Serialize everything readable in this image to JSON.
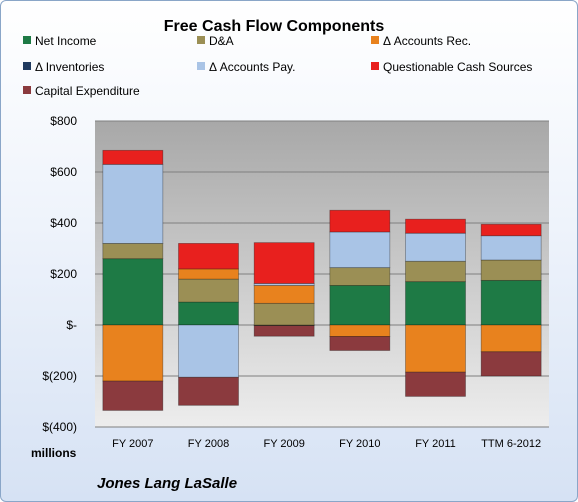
{
  "chart_data": {
    "type": "bar",
    "stacked": true,
    "title": "Free Cash Flow Components",
    "categories": [
      "FY 2007",
      "FY 2008",
      "FY 2009",
      "FY 2010",
      "FY 2011",
      "TTM 6-2012"
    ],
    "series": [
      {
        "name": "Net Income",
        "color": "#1e7a45",
        "values": [
          260,
          90,
          -2,
          155,
          170,
          175
        ]
      },
      {
        "name": "D&A",
        "color": "#9b8f55",
        "values": [
          60,
          90,
          85,
          70,
          80,
          80
        ]
      },
      {
        "name": "Δ Accounts Rec.",
        "color": "#e8821e",
        "values": [
          -220,
          40,
          70,
          -45,
          -185,
          -105
        ]
      },
      {
        "name": "Δ Inventories",
        "color": "#1f3a5f",
        "values": [
          0,
          0,
          0,
          0,
          0,
          0
        ]
      },
      {
        "name": "Δ Accounts Pay.",
        "color": "#a9c4e6",
        "values": [
          310,
          -205,
          8,
          140,
          110,
          95
        ]
      },
      {
        "name": "Questionable Cash Sources",
        "color": "#e8201e",
        "values": [
          55,
          100,
          160,
          85,
          55,
          45
        ]
      },
      {
        "name": "Capital Expenditure",
        "color": "#8b3a3e",
        "values": [
          -115,
          -110,
          -42,
          -55,
          -95,
          -95
        ]
      }
    ],
    "y_ticks": [
      800,
      600,
      400,
      200,
      0,
      -200,
      -400
    ],
    "y_tick_labels": [
      "$800",
      "$600",
      "$400",
      "$200",
      "$-",
      "$(200)",
      "$(400)"
    ],
    "ylim": [
      -400,
      800
    ],
    "ylabel": "millions",
    "legend_position": "top",
    "grid": true
  },
  "footer": {
    "company": "Jones Lang LaSalle"
  }
}
